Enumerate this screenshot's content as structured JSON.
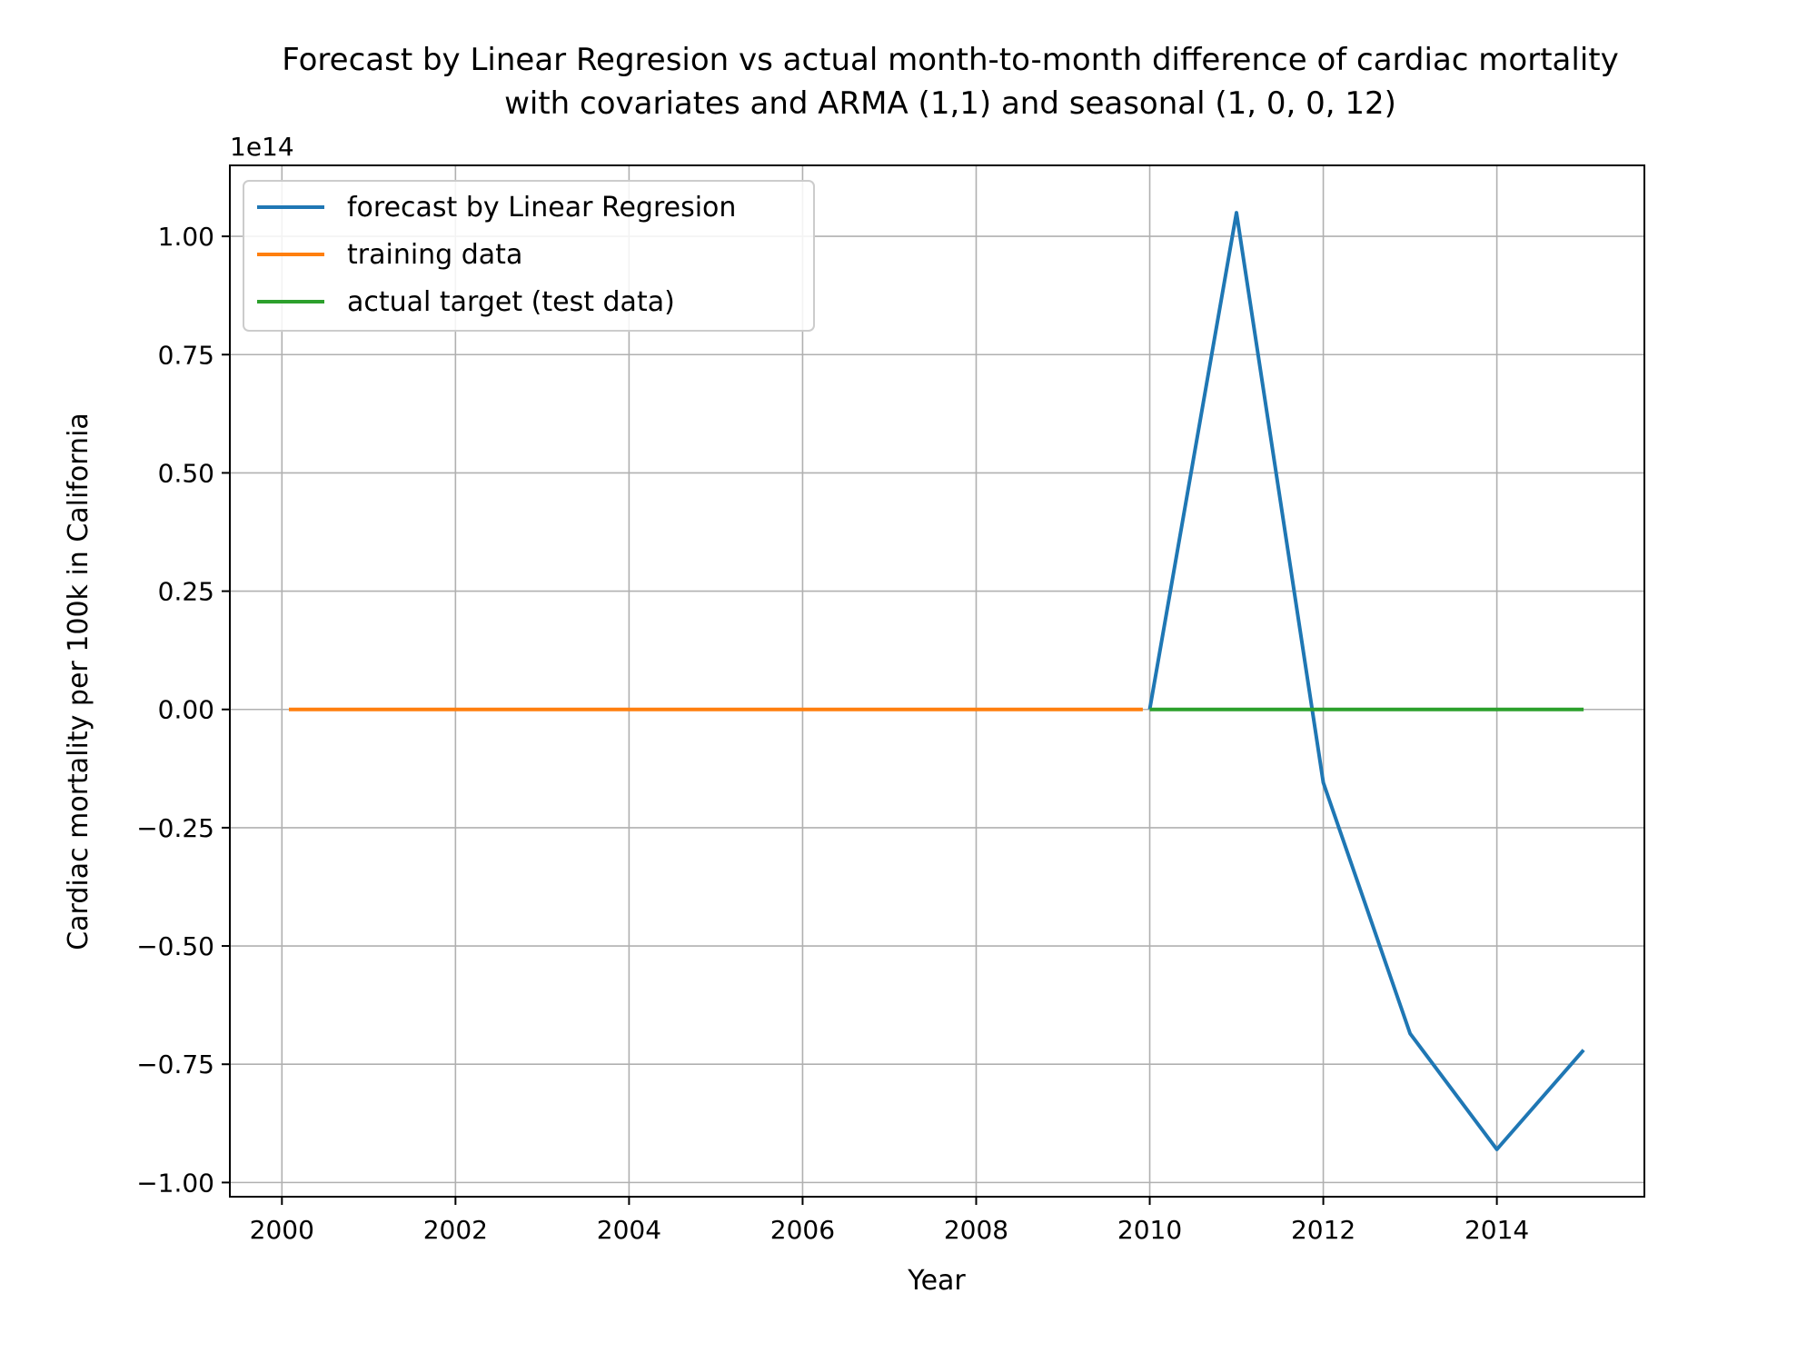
{
  "chart_data": {
    "type": "line",
    "title": "Forecast by Linear Regresion vs actual month-to-month difference of cardiac mortality",
    "subtitle": "with covariates and ARMA (1,1) and seasonal (1, 0, 0, 12)",
    "xlabel": "Year",
    "ylabel": "Cardiac mortality per 100k in California",
    "y_offset_label": "1e14",
    "xlim": [
      1999.4,
      2015.7
    ],
    "ylim": [
      -1.03,
      1.15
    ],
    "x_ticks": [
      2000,
      2002,
      2004,
      2006,
      2008,
      2010,
      2012,
      2014
    ],
    "x_tick_labels": [
      "2000",
      "2002",
      "2004",
      "2006",
      "2008",
      "2010",
      "2012",
      "2014"
    ],
    "y_ticks": [
      -1.0,
      -0.75,
      -0.5,
      -0.25,
      0.0,
      0.25,
      0.5,
      0.75,
      1.0
    ],
    "y_tick_labels": [
      "−1.00",
      "−0.75",
      "−0.50",
      "−0.25",
      "0.00",
      "0.25",
      "0.50",
      "0.75",
      "1.00"
    ],
    "grid": true,
    "legend_position": "top-left",
    "series": [
      {
        "name": "forecast by Linear Regresion",
        "color": "#1f77b4",
        "x": [
          2010,
          2011,
          2012,
          2013,
          2014,
          2015
        ],
        "y": [
          0.0,
          1.05,
          -0.155,
          -0.685,
          -0.93,
          -0.72
        ]
      },
      {
        "name": "training data",
        "color": "#ff7f0e",
        "x": [
          2000.08,
          2009.92
        ],
        "y": [
          0.0,
          0.0
        ]
      },
      {
        "name": "actual target (test data)",
        "color": "#2ca02c",
        "x": [
          2010,
          2015
        ],
        "y": [
          0.0,
          0.0
        ]
      }
    ]
  }
}
